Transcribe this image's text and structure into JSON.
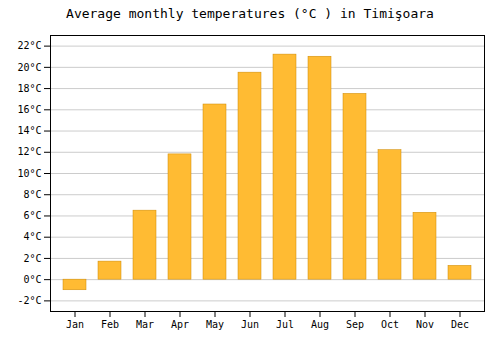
{
  "chart_data": {
    "type": "bar",
    "title": "Average monthly temperatures (°C ) in Timişoara",
    "categories": [
      "Jan",
      "Feb",
      "Mar",
      "Apr",
      "May",
      "Jun",
      "Jul",
      "Aug",
      "Sep",
      "Oct",
      "Nov",
      "Dec"
    ],
    "values": [
      -1.0,
      1.7,
      6.5,
      11.8,
      16.5,
      19.5,
      21.2,
      21.0,
      17.5,
      12.2,
      6.3,
      1.3
    ],
    "color": "#FFBB33",
    "ylim": [
      -3,
      23
    ],
    "yticks": [
      {
        "value": -2,
        "label": "-2°C"
      },
      {
        "value": 0,
        "label": "0°C"
      },
      {
        "value": 2,
        "label": "2°C"
      },
      {
        "value": 4,
        "label": "4°C"
      },
      {
        "value": 6,
        "label": "6°C"
      },
      {
        "value": 8,
        "label": "8°C"
      },
      {
        "value": 10,
        "label": "10°C"
      },
      {
        "value": 12,
        "label": "12°C"
      },
      {
        "value": 14,
        "label": "14°C"
      },
      {
        "value": 16,
        "label": "16°C"
      },
      {
        "value": 18,
        "label": "18°C"
      },
      {
        "value": 20,
        "label": "20°C"
      },
      {
        "value": 22,
        "label": "22°C"
      }
    ],
    "grid": true
  }
}
